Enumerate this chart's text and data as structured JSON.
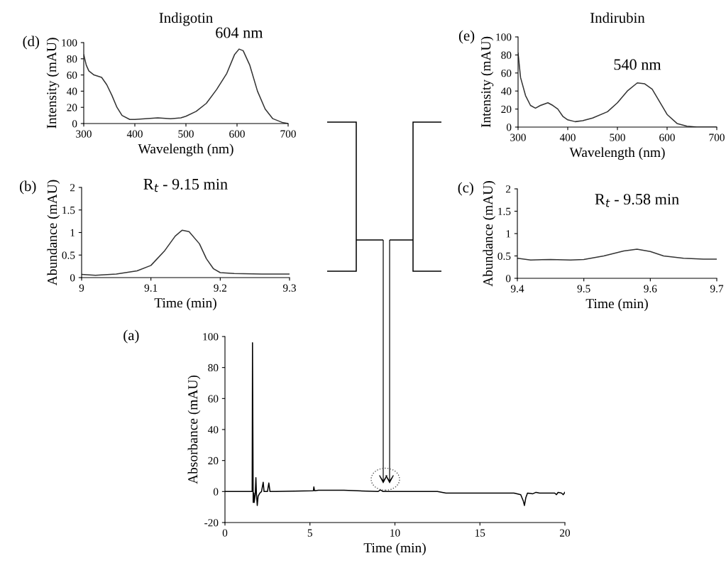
{
  "chart_data": [
    {
      "type": "line",
      "title": "Indigotin",
      "xlabel": "Wavelength (nm)",
      "ylabel": "Intensity (mAU)",
      "annotations": [
        "(d)",
        {
          "text": "604 nm",
          "x": 604,
          "y": 92
        }
      ],
      "xlim": [
        300,
        700
      ],
      "xticks": [
        300,
        400,
        500,
        600,
        700
      ],
      "ylim": [
        0,
        100
      ],
      "yticks": [
        0,
        20,
        40,
        60,
        80,
        100
      ],
      "grid": false,
      "legend": false,
      "series": [
        {
          "color": "#333333",
          "x": [
            300,
            305,
            310,
            320,
            335,
            345,
            355,
            365,
            375,
            390,
            400,
            420,
            445,
            470,
            490,
            500,
            520,
            540,
            560,
            580,
            595,
            604,
            612,
            625,
            640,
            655,
            670,
            690,
            700
          ],
          "values": [
            85,
            72,
            65,
            60,
            57,
            48,
            35,
            20,
            10,
            5,
            5,
            6,
            7,
            6,
            7,
            9,
            15,
            25,
            42,
            62,
            85,
            92,
            90,
            72,
            40,
            18,
            6,
            1,
            0
          ]
        }
      ]
    },
    {
      "type": "line",
      "title": "Indirubin",
      "xlabel": "Wavelength (nm)",
      "ylabel": "Intensity (mAU)",
      "annotations": [
        "(e)",
        {
          "text": "540 nm",
          "x": 540,
          "y": 49
        }
      ],
      "xlim": [
        300,
        700
      ],
      "xticks": [
        300,
        400,
        500,
        600,
        700
      ],
      "ylim": [
        0,
        100
      ],
      "yticks": [
        0,
        20,
        40,
        60,
        80,
        100
      ],
      "grid": false,
      "legend": false,
      "series": [
        {
          "color": "#333333",
          "x": [
            300,
            305,
            315,
            325,
            335,
            345,
            360,
            370,
            380,
            390,
            400,
            415,
            430,
            450,
            480,
            500,
            520,
            540,
            555,
            570,
            585,
            600,
            620,
            640,
            660,
            700
          ],
          "values": [
            82,
            55,
            35,
            24,
            21,
            24,
            27,
            24,
            20,
            12,
            8,
            6,
            7,
            10,
            17,
            27,
            40,
            49,
            48,
            42,
            28,
            14,
            4,
            1,
            0,
            0
          ]
        }
      ]
    },
    {
      "type": "line",
      "xlabel": "Time (min)",
      "ylabel": "Abundance (mAU)",
      "annotations": [
        "(b)",
        {
          "text": "R$_{t}$ - 9.15 min",
          "x": 9.15,
          "y": 1.05
        }
      ],
      "xlim": [
        9,
        9.3
      ],
      "xticks": [
        {
          "value": 9,
          "label": "9"
        },
        9.1,
        9.2,
        9.3
      ],
      "ylim": [
        0,
        2
      ],
      "yticks": [
        0,
        0.5,
        1,
        1.5,
        2
      ],
      "grid": false,
      "legend": false,
      "series": [
        {
          "color": "#333333",
          "x": [
            9.0,
            9.02,
            9.05,
            9.08,
            9.1,
            9.12,
            9.135,
            9.145,
            9.155,
            9.17,
            9.18,
            9.19,
            9.2,
            9.22,
            9.26,
            9.3
          ],
          "values": [
            0.07,
            0.05,
            0.08,
            0.15,
            0.27,
            0.6,
            0.92,
            1.05,
            1.02,
            0.75,
            0.42,
            0.2,
            0.11,
            0.09,
            0.08,
            0.08
          ]
        }
      ]
    },
    {
      "type": "line",
      "xlabel": "Time (min)",
      "ylabel": "Abundance (mAU)",
      "annotations": [
        "(c)",
        {
          "text": "R$_{t}$ - 9.58 min",
          "x": 9.58,
          "y": 0.65
        }
      ],
      "xlim": [
        9.4,
        9.7
      ],
      "xticks": [
        9.4,
        9.5,
        9.6,
        9.7
      ],
      "ylim": [
        0,
        2
      ],
      "yticks": [
        0,
        0.5,
        1,
        1.5,
        2
      ],
      "grid": false,
      "legend": false,
      "series": [
        {
          "color": "#333333",
          "x": [
            9.4,
            9.42,
            9.45,
            9.48,
            9.5,
            9.53,
            9.56,
            9.58,
            9.6,
            9.62,
            9.65,
            9.68,
            9.7
          ],
          "values": [
            0.45,
            0.41,
            0.42,
            0.41,
            0.42,
            0.5,
            0.61,
            0.65,
            0.6,
            0.5,
            0.45,
            0.43,
            0.43
          ]
        }
      ]
    },
    {
      "type": "line",
      "xlabel": "Time (min)",
      "ylabel": "Absorbance (mAU)",
      "annotations": [
        "(a)"
      ],
      "xlim": [
        0,
        20
      ],
      "xticks": [
        0,
        5,
        10,
        15,
        20
      ],
      "ylim": [
        -20,
        100
      ],
      "yticks": [
        -20,
        0,
        20,
        40,
        60,
        80,
        100
      ],
      "grid": false,
      "legend": false,
      "series": [
        {
          "color": "#000000",
          "x": [
            0,
            1.5,
            1.6,
            1.62,
            1.66,
            1.7,
            1.72,
            1.78,
            1.82,
            1.85,
            1.9,
            1.95,
            2.05,
            2.15,
            2.25,
            2.3,
            2.5,
            2.58,
            2.65,
            3,
            5.2,
            5.23,
            5.27,
            5.5,
            7,
            9,
            9.15,
            9.3,
            10,
            12.5,
            13,
            15,
            17,
            17.4,
            17.55,
            17.62,
            17.7,
            17.8,
            18.1,
            18.3,
            18.5,
            19,
            19.4,
            19.5,
            19.6,
            19.8,
            19.9,
            20
          ],
          "values": [
            0,
            0,
            0,
            96,
            -7,
            -1,
            -7,
            -2,
            9,
            -1,
            -9,
            -3,
            -1,
            0,
            6,
            0,
            0,
            5.5,
            0,
            0,
            0.5,
            3,
            0.5,
            0.8,
            0.8,
            0,
            1,
            0,
            0,
            0,
            -1,
            -1,
            -1,
            -2,
            -6,
            -9,
            -4,
            -1,
            -1.5,
            -0.5,
            -1,
            -1,
            -1,
            -2,
            -0.5,
            -1,
            -2,
            -0.5
          ]
        }
      ]
    }
  ]
}
